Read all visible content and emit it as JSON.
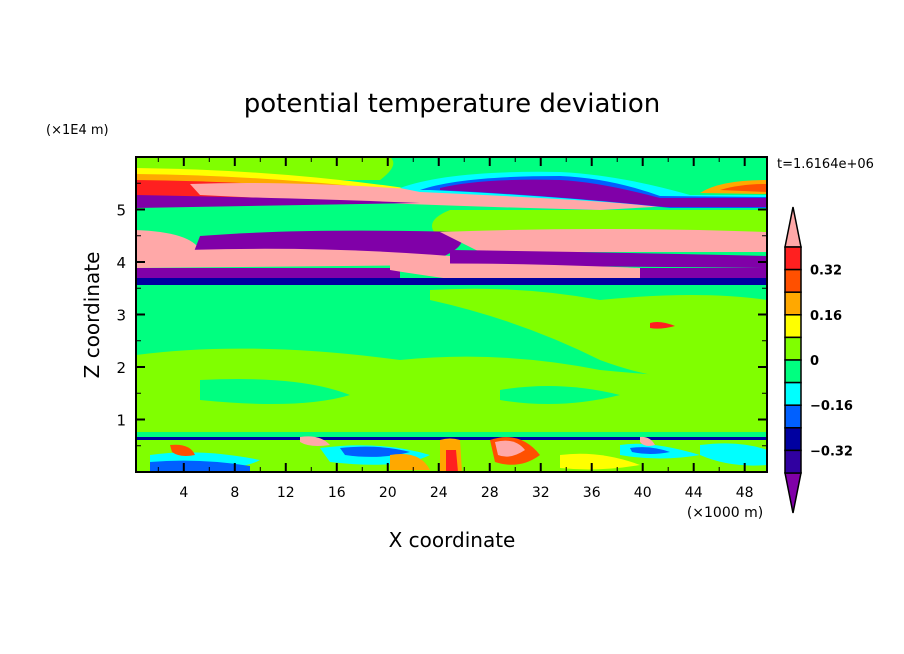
{
  "chart_data": {
    "type": "heatmap",
    "title": "potential temperature deviation",
    "xlabel": "X coordinate",
    "ylabel": "Z coordinate",
    "x_unit": "(×1000 m)",
    "y_unit": "(×1E4 m)",
    "time_label": "t=1.6164e+06",
    "xlim": [
      0.25,
      49.75
    ],
    "ylim": [
      0,
      6
    ],
    "x_ticks": [
      4,
      8,
      12,
      16,
      20,
      24,
      28,
      32,
      36,
      40,
      44,
      48
    ],
    "x_tick_labels": [
      "4",
      "8",
      "12",
      "16",
      "20",
      "24",
      "28",
      "32",
      "36",
      "40",
      "44",
      "48"
    ],
    "y_ticks": [
      1,
      2,
      3,
      4,
      5
    ],
    "y_tick_labels": [
      "1",
      "2",
      "3",
      "4",
      "5"
    ],
    "colorbar": {
      "levels": [
        0.4,
        0.32,
        0.24,
        0.16,
        0.08,
        0,
        -0.08,
        -0.16,
        -0.24,
        -0.32,
        -0.4
      ],
      "colors": [
        "#ff2020",
        "#ff5000",
        "#ffa800",
        "#ffff00",
        "#80ff00",
        "#00ff80",
        "#00ffff",
        "#0060ff",
        "#0000a0",
        "#3000a0"
      ],
      "over_color": "#ffa8a8",
      "under_color": "#8000a8",
      "tick_values": [
        0.32,
        0.16,
        0,
        -0.16,
        -0.32
      ],
      "tick_labels": [
        "0.32",
        "0.16",
        "0",
        "−0.16",
        "−0.32"
      ]
    }
  }
}
